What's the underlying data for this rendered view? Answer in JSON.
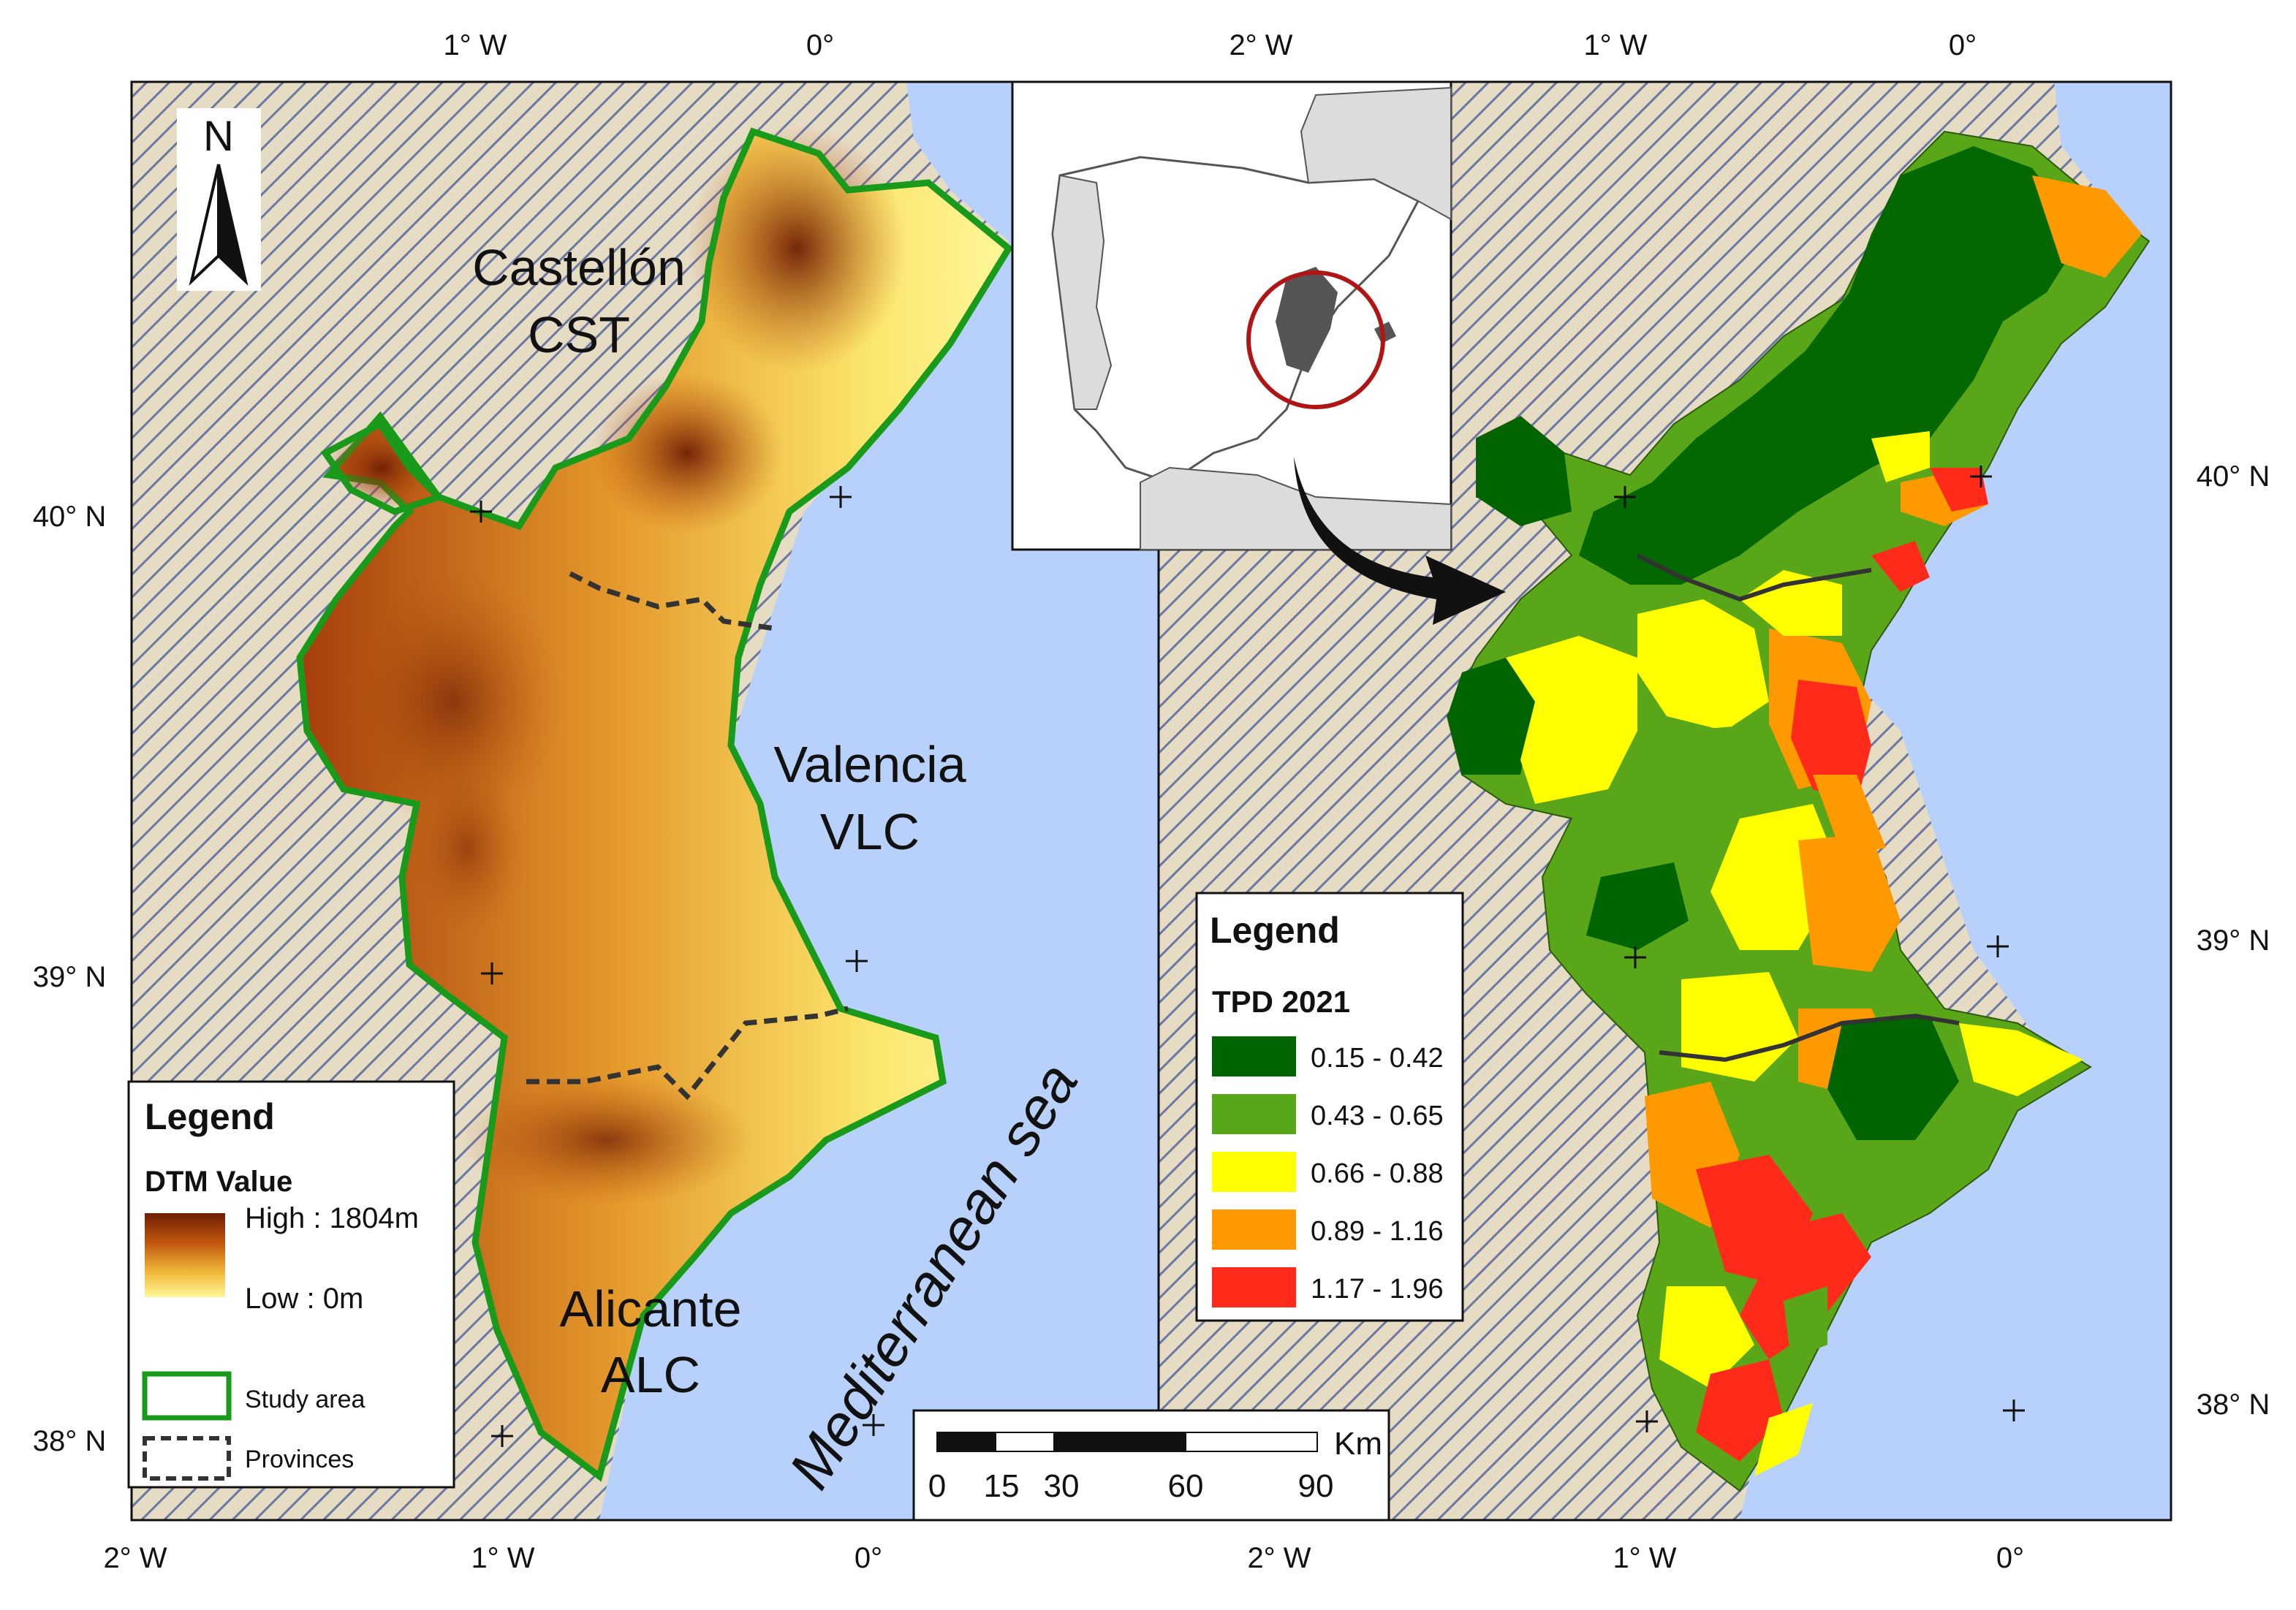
{
  "left_map": {
    "top_ticks": [
      "1° W",
      "0°"
    ],
    "bottom_ticks": [
      "2° W",
      "1° W",
      "0°"
    ],
    "left_ticks": [
      "40° N",
      "39° N",
      "38° N"
    ],
    "north_arrow": "N",
    "regions": [
      {
        "name": "Castellón",
        "code": "CST"
      },
      {
        "name": "Valencia",
        "code": "VLC"
      },
      {
        "name": "Alicante",
        "code": "ALC"
      }
    ],
    "sea_label": "Mediterranean sea",
    "legend": {
      "title": "Legend",
      "subtitle": "DTM Value",
      "high": "High : 1804m",
      "low": "Low : 0m",
      "study_area": "Study area",
      "provinces": "Provinces"
    }
  },
  "right_map": {
    "top_ticks": [
      "2° W",
      "1° W",
      "0°"
    ],
    "bottom_ticks": [
      "2° W",
      "1° W",
      "0°"
    ],
    "right_ticks": [
      "40° N",
      "39° N",
      "38° N"
    ],
    "legend": {
      "title": "Legend",
      "subtitle": "TPD 2021",
      "classes": [
        {
          "label": "0.15 - 0.42",
          "color": "#006400"
        },
        {
          "label": "0.43 - 0.65",
          "color": "#5aa619"
        },
        {
          "label": "0.66 - 0.88",
          "color": "#ffff00"
        },
        {
          "label": "0.89 - 1.16",
          "color": "#ff9900"
        },
        {
          "label": "1.17 - 1.96",
          "color": "#ff2a1a"
        }
      ]
    }
  },
  "scale_bar": {
    "unit": "Km",
    "labels": [
      "0",
      "15",
      "30",
      "60",
      "90"
    ]
  },
  "colors": {
    "sea": "#b7d1fa",
    "hatch_bg": "#e6dcc4",
    "hatch_line": "#6b77a3",
    "study_area_outline": "#1a9a1a",
    "province_line": "#333333",
    "dtm_high": "#6e1e05",
    "dtm_low": "#fff79a"
  }
}
